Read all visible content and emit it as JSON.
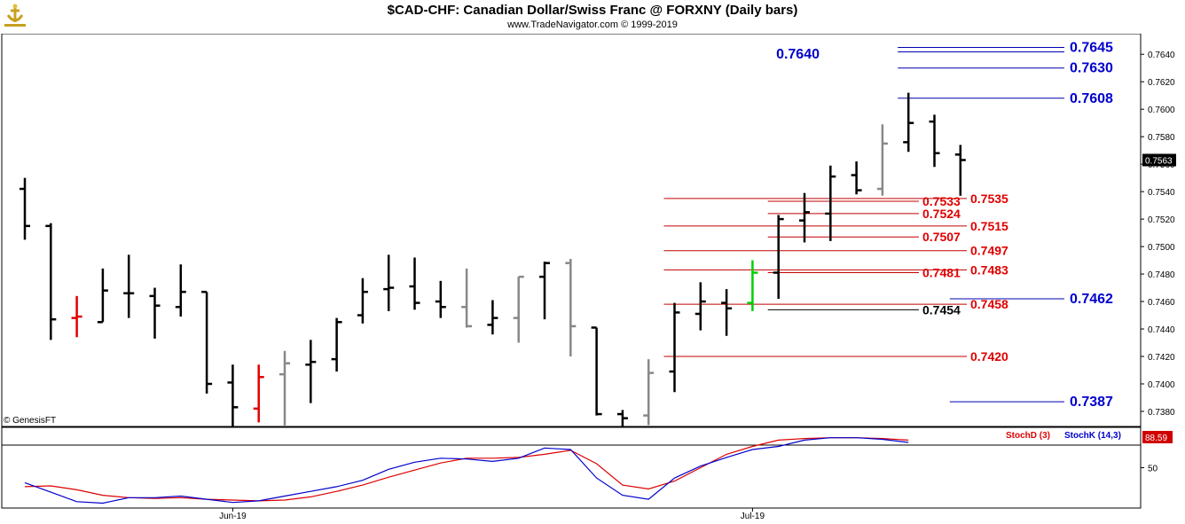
{
  "header": {
    "title": "$CAD-CHF:  Canadian Dollar/Swiss Franc @ FORXNY  (Daily bars)",
    "subtitle": "www.TradeNavigator.com © 1999-2019",
    "watermark": "© GenesisFT"
  },
  "colors": {
    "up_bar": "#000000",
    "gray_bar": "#888888",
    "red_bar": "#e00000",
    "green_bar": "#00d000",
    "support_line": "#c00000",
    "resistance_line": "#0000b0",
    "red_label": "#e00000",
    "blue_label": "#0000cc",
    "stochD": "#dd0000",
    "stochK": "#0000cc"
  },
  "chart_data": [
    {
      "type": "ohlc",
      "title": "$CAD-CHF:  Canadian Dollar/Swiss Franc @ FORXNY  (Daily bars)",
      "ylim": [
        0.7369,
        0.7655
      ],
      "y_ticks": [
        "0.7380",
        "0.7400",
        "0.7420",
        "0.7440",
        "0.7460",
        "0.7480",
        "0.7500",
        "0.7520",
        "0.7540",
        "0.7560",
        "0.7580",
        "0.7600",
        "0.7620",
        "0.7640"
      ],
      "x_labels": [
        {
          "label": "Jun-19",
          "bar": 8
        },
        {
          "label": "Jul-19",
          "bar": 28
        }
      ],
      "last_price": "0.7563",
      "bars": [
        {
          "o": 0.7542,
          "h": 0.755,
          "l": 0.7505,
          "c": 0.7515,
          "color": "black"
        },
        {
          "o": 0.7515,
          "h": 0.7517,
          "l": 0.7432,
          "c": 0.7447,
          "color": "black"
        },
        {
          "o": 0.7448,
          "h": 0.7464,
          "l": 0.7434,
          "c": 0.7449,
          "color": "red"
        },
        {
          "o": 0.7445,
          "h": 0.7484,
          "l": 0.7445,
          "c": 0.7468,
          "color": "black"
        },
        {
          "o": 0.7466,
          "h": 0.7494,
          "l": 0.7448,
          "c": 0.7466,
          "color": "black"
        },
        {
          "o": 0.7464,
          "h": 0.747,
          "l": 0.7433,
          "c": 0.7457,
          "color": "black"
        },
        {
          "o": 0.7456,
          "h": 0.7487,
          "l": 0.7449,
          "c": 0.7467,
          "color": "black"
        },
        {
          "o": 0.7467,
          "h": 0.7467,
          "l": 0.7393,
          "c": 0.74,
          "color": "black"
        },
        {
          "o": 0.7401,
          "h": 0.7414,
          "l": 0.7369,
          "c": 0.7383,
          "color": "black"
        },
        {
          "o": 0.7382,
          "h": 0.7414,
          "l": 0.7372,
          "c": 0.7405,
          "color": "red"
        },
        {
          "o": 0.7407,
          "h": 0.7424,
          "l": 0.7369,
          "c": 0.7415,
          "color": "gray"
        },
        {
          "o": 0.7414,
          "h": 0.7432,
          "l": 0.7386,
          "c": 0.7416,
          "color": "black"
        },
        {
          "o": 0.7418,
          "h": 0.7448,
          "l": 0.7409,
          "c": 0.7445,
          "color": "black"
        },
        {
          "o": 0.745,
          "h": 0.7477,
          "l": 0.7444,
          "c": 0.7467,
          "color": "black"
        },
        {
          "o": 0.7469,
          "h": 0.7494,
          "l": 0.7453,
          "c": 0.747,
          "color": "black"
        },
        {
          "o": 0.7471,
          "h": 0.7492,
          "l": 0.7454,
          "c": 0.7459,
          "color": "black"
        },
        {
          "o": 0.746,
          "h": 0.7475,
          "l": 0.7448,
          "c": 0.7456,
          "color": "black"
        },
        {
          "o": 0.7456,
          "h": 0.7484,
          "l": 0.7441,
          "c": 0.7442,
          "color": "gray"
        },
        {
          "o": 0.7443,
          "h": 0.7461,
          "l": 0.7436,
          "c": 0.7448,
          "color": "black"
        },
        {
          "o": 0.7448,
          "h": 0.7478,
          "l": 0.743,
          "c": 0.7478,
          "color": "gray"
        },
        {
          "o": 0.7478,
          "h": 0.7489,
          "l": 0.7447,
          "c": 0.7488,
          "color": "black"
        },
        {
          "o": 0.7488,
          "h": 0.7491,
          "l": 0.742,
          "c": 0.7442,
          "color": "gray"
        },
        {
          "o": 0.7441,
          "h": 0.7441,
          "l": 0.7377,
          "c": 0.7378,
          "color": "black"
        },
        {
          "o": 0.7378,
          "h": 0.7381,
          "l": 0.7369,
          "c": 0.7375,
          "color": "black"
        },
        {
          "o": 0.7377,
          "h": 0.7418,
          "l": 0.737,
          "c": 0.7408,
          "color": "gray"
        },
        {
          "o": 0.7409,
          "h": 0.7459,
          "l": 0.7394,
          "c": 0.7452,
          "color": "black"
        },
        {
          "o": 0.7451,
          "h": 0.7474,
          "l": 0.7439,
          "c": 0.746,
          "color": "black"
        },
        {
          "o": 0.7459,
          "h": 0.7469,
          "l": 0.7435,
          "c": 0.7455,
          "color": "black"
        },
        {
          "o": 0.7459,
          "h": 0.749,
          "l": 0.7453,
          "c": 0.7481,
          "color": "green"
        },
        {
          "o": 0.7481,
          "h": 0.7523,
          "l": 0.7462,
          "c": 0.752,
          "color": "black"
        },
        {
          "o": 0.7519,
          "h": 0.7539,
          "l": 0.7503,
          "c": 0.7525,
          "color": "black"
        },
        {
          "o": 0.7524,
          "h": 0.7559,
          "l": 0.7504,
          "c": 0.7551,
          "color": "black"
        },
        {
          "o": 0.7552,
          "h": 0.7562,
          "l": 0.7538,
          "c": 0.7541,
          "color": "black"
        },
        {
          "o": 0.7542,
          "h": 0.7589,
          "l": 0.7537,
          "c": 0.7575,
          "color": "gray"
        },
        {
          "o": 0.7576,
          "h": 0.7612,
          "l": 0.7569,
          "c": 0.759,
          "color": "black"
        },
        {
          "o": 0.7591,
          "h": 0.7596,
          "l": 0.7558,
          "c": 0.7568,
          "color": "black"
        },
        {
          "o": 0.7567,
          "h": 0.7574,
          "l": 0.7537,
          "c": 0.7563,
          "color": "black"
        }
      ],
      "levels": [
        {
          "value": 0.7645,
          "label": "0.7645",
          "color": "blue",
          "start_bar": 34,
          "double": true
        },
        {
          "value": 0.764,
          "label": "0.7640",
          "color": "blue",
          "start_bar": null,
          "label_side": "left"
        },
        {
          "value": 0.763,
          "label": "0.7630",
          "color": "blue",
          "start_bar": 34
        },
        {
          "value": 0.7608,
          "label": "0.7608",
          "color": "blue",
          "start_bar": 34
        },
        {
          "value": 0.7535,
          "label": "0.7535",
          "color": "red",
          "start_bar": 25
        },
        {
          "value": 0.7533,
          "label": "0.7533",
          "color": "red",
          "start_bar": 29,
          "label_side": "inner"
        },
        {
          "value": 0.7524,
          "label": "0.7524",
          "color": "red",
          "start_bar": 29,
          "label_side": "inner"
        },
        {
          "value": 0.7515,
          "label": "0.7515",
          "color": "red",
          "start_bar": 25
        },
        {
          "value": 0.7507,
          "label": "0.7507",
          "color": "red",
          "start_bar": 29,
          "label_side": "inner"
        },
        {
          "value": 0.7497,
          "label": "0.7497",
          "color": "red",
          "start_bar": 25
        },
        {
          "value": 0.7483,
          "label": "0.7483",
          "color": "red",
          "start_bar": 25
        },
        {
          "value": 0.7481,
          "label": "0.7481",
          "color": "red",
          "start_bar": 29,
          "label_side": "inner"
        },
        {
          "value": 0.7462,
          "label": "0.7462",
          "color": "blue",
          "start_bar": 36
        },
        {
          "value": 0.7458,
          "label": "0.7458",
          "color": "red",
          "start_bar": 25
        },
        {
          "value": 0.7454,
          "label": "0.7454",
          "color": "black",
          "start_bar": 29,
          "label_side": "inner"
        },
        {
          "value": 0.742,
          "label": "0.7420",
          "color": "red",
          "start_bar": 25
        },
        {
          "value": 0.7387,
          "label": "0.7387",
          "color": "blue",
          "start_bar": 36
        }
      ]
    },
    {
      "type": "line",
      "title": "",
      "ylim": [
        0,
        100
      ],
      "y_ticks": [
        "50"
      ],
      "last_value": "88.59",
      "legend": [
        "StochD (3)",
        "StochK (14,3)"
      ],
      "series": [
        {
          "name": "StochD (3)",
          "color": "red",
          "values": [
            26,
            27,
            22,
            15,
            12,
            11,
            12,
            10,
            9,
            8,
            9,
            13,
            20,
            28,
            38,
            47,
            56,
            62,
            62,
            63,
            67,
            72,
            55,
            28,
            23,
            33,
            50,
            67,
            77,
            85,
            87,
            88,
            88,
            87,
            85
          ]
        },
        {
          "name": "StochK (14,3)",
          "color": "blue",
          "values": [
            31,
            19,
            7,
            5,
            12,
            12,
            14,
            10,
            6,
            8,
            14,
            20,
            26,
            34,
            48,
            57,
            62,
            61,
            58,
            62,
            75,
            73,
            37,
            15,
            10,
            37,
            52,
            63,
            73,
            77,
            85,
            88,
            88,
            86,
            82
          ]
        }
      ]
    }
  ]
}
